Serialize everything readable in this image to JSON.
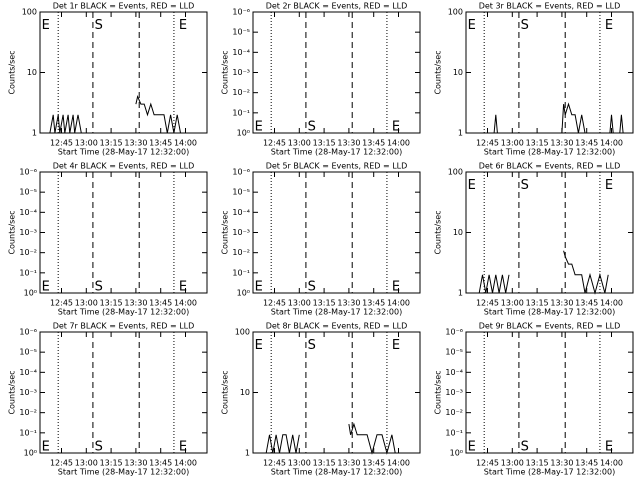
{
  "chart_data": [
    {
      "type": "line",
      "title": "Det 1r BLACK = Events, RED = LLD",
      "xlabel": "Start Time (28-May-17 12:32:00)",
      "ylabel": "Counts/sec",
      "log_y": true,
      "xlim": [
        "12:32",
        "14:13"
      ],
      "xticks": [
        "12:45",
        "13:00",
        "13:15",
        "13:30",
        "13:45",
        "14:00"
      ],
      "ylim": [
        1,
        100
      ],
      "yticks": [
        1,
        10,
        100
      ],
      "vlines": {
        "dotted": [
          "12:43",
          "13:53"
        ],
        "dashed": [
          "13:04",
          "13:32"
        ]
      },
      "annotations": [
        {
          "text": "E",
          "x": "12:33",
          "y": 60
        },
        {
          "text": "S",
          "x": "13:05",
          "y": 60
        },
        {
          "text": "E",
          "x": "13:56",
          "y": 60
        }
      ],
      "series": [
        {
          "color": "#000000",
          "x": [
            "12:38",
            "12:40",
            "12:41",
            "12:43",
            "12:44",
            "12:46",
            "12:47",
            "12:49",
            "12:50",
            "12:52",
            "12:53",
            "12:55",
            "12:57",
            "13:10",
            "13:30",
            "13:31",
            "13:33",
            "13:35",
            "13:37",
            "13:39",
            "13:41",
            "13:43",
            "13:45",
            "13:47",
            "13:49",
            "13:51",
            "13:53",
            "13:55",
            "13:57"
          ],
          "values": [
            1,
            2,
            1,
            2,
            1,
            2,
            1,
            2,
            1,
            2,
            1,
            2,
            1,
            null,
            3,
            4,
            3,
            3,
            2,
            3,
            2,
            2,
            2,
            2,
            1,
            2,
            1,
            2,
            1
          ]
        }
      ]
    },
    {
      "type": "line",
      "title": "Det 2r BLACK = Events, RED = LLD",
      "xlabel": "Start Time (28-May-17 12:32:00)",
      "ylabel": "Counts/sec",
      "log_y": true,
      "xlim": [
        "12:32",
        "14:13"
      ],
      "xticks": [
        "12:45",
        "13:00",
        "13:15",
        "13:30",
        "13:45",
        "14:00"
      ],
      "ylim": [
        1,
        1e-06
      ],
      "yticks": [
        {
          "value": 1,
          "label": "10⁰"
        },
        {
          "value": 0.1,
          "label": "10⁻¹"
        },
        {
          "value": 0.01,
          "label": "10⁻²"
        },
        {
          "value": 0.001,
          "label": "10⁻³"
        },
        {
          "value": 0.0001,
          "label": "10⁻⁴"
        },
        {
          "value": 1e-05,
          "label": "10⁻⁵"
        },
        {
          "value": 1e-06,
          "label": "10⁻⁶"
        }
      ],
      "vlines": {
        "dotted": [
          "12:43",
          "13:53"
        ],
        "dashed": [
          "13:04",
          "13:32"
        ]
      },
      "annotations": [
        {
          "text": "E",
          "x": "12:33",
          "y": 0.5
        },
        {
          "text": "S",
          "x": "13:05",
          "y": 0.5
        },
        {
          "text": "E",
          "x": "13:56",
          "y": 0.5
        }
      ],
      "series": []
    },
    {
      "type": "line",
      "title": "Det 3r BLACK = Events, RED = LLD",
      "xlabel": "Start Time (28-May-17 12:32:00)",
      "ylabel": "Counts/sec",
      "log_y": true,
      "xlim": [
        "12:32",
        "14:13"
      ],
      "xticks": [
        "12:45",
        "13:00",
        "13:15",
        "13:30",
        "13:45",
        "14:00"
      ],
      "ylim": [
        1,
        100
      ],
      "yticks": [
        1,
        10,
        100
      ],
      "vlines": {
        "dotted": [
          "12:43",
          "13:53"
        ],
        "dashed": [
          "13:04",
          "13:32"
        ]
      },
      "annotations": [
        {
          "text": "E",
          "x": "12:33",
          "y": 60
        },
        {
          "text": "S",
          "x": "13:05",
          "y": 60
        },
        {
          "text": "E",
          "x": "13:56",
          "y": 60
        }
      ],
      "series": [
        {
          "color": "#000000",
          "x": [
            "12:49",
            "12:50",
            "12:51",
            "13:20",
            "13:30",
            "13:31",
            "13:32",
            "13:34",
            "13:36",
            "13:38",
            "13:40",
            "13:42",
            "13:44",
            "13:46",
            "13:50",
            "13:59",
            "14:00",
            "14:01",
            "14:05",
            "14:06",
            "14:07"
          ],
          "values": [
            1,
            2,
            1,
            null,
            1,
            3,
            2,
            3,
            2,
            2,
            1,
            2,
            1,
            1,
            null,
            1,
            2,
            1,
            1,
            2,
            1
          ]
        }
      ]
    },
    {
      "type": "line",
      "title": "Det 4r BLACK = Events, RED = LLD",
      "xlabel": "Start Time (28-May-17 12:32:00)",
      "ylabel": "Counts/sec",
      "log_y": true,
      "xlim": [
        "12:32",
        "14:13"
      ],
      "xticks": [
        "12:45",
        "13:00",
        "13:15",
        "13:30",
        "13:45",
        "14:00"
      ],
      "ylim": [
        1,
        1e-06
      ],
      "yticks": [
        {
          "value": 1,
          "label": "10⁰"
        },
        {
          "value": 0.1,
          "label": "10⁻¹"
        },
        {
          "value": 0.01,
          "label": "10⁻²"
        },
        {
          "value": 0.001,
          "label": "10⁻³"
        },
        {
          "value": 0.0001,
          "label": "10⁻⁴"
        },
        {
          "value": 1e-05,
          "label": "10⁻⁵"
        },
        {
          "value": 1e-06,
          "label": "10⁻⁶"
        }
      ],
      "vlines": {
        "dotted": [
          "12:43",
          "13:53"
        ],
        "dashed": [
          "13:04",
          "13:32"
        ]
      },
      "annotations": [
        {
          "text": "E",
          "x": "12:33",
          "y": 0.5
        },
        {
          "text": "S",
          "x": "13:05",
          "y": 0.5
        },
        {
          "text": "E",
          "x": "13:56",
          "y": 0.5
        }
      ],
      "series": []
    },
    {
      "type": "line",
      "title": "Det 5r BLACK = Events, RED = LLD",
      "xlabel": "Start Time (28-May-17 12:32:00)",
      "ylabel": "Counts/sec",
      "log_y": true,
      "xlim": [
        "12:32",
        "14:13"
      ],
      "xticks": [
        "12:45",
        "13:00",
        "13:15",
        "13:30",
        "13:45",
        "14:00"
      ],
      "ylim": [
        1,
        1e-06
      ],
      "yticks": [
        {
          "value": 1,
          "label": "10⁰"
        },
        {
          "value": 0.1,
          "label": "10⁻¹"
        },
        {
          "value": 0.01,
          "label": "10⁻²"
        },
        {
          "value": 0.001,
          "label": "10⁻³"
        },
        {
          "value": 0.0001,
          "label": "10⁻⁴"
        },
        {
          "value": 1e-05,
          "label": "10⁻⁵"
        },
        {
          "value": 1e-06,
          "label": "10⁻⁶"
        }
      ],
      "vlines": {
        "dotted": [
          "12:43",
          "13:53"
        ],
        "dashed": [
          "13:04",
          "13:32"
        ]
      },
      "annotations": [
        {
          "text": "E",
          "x": "12:33",
          "y": 0.5
        },
        {
          "text": "S",
          "x": "13:05",
          "y": 0.5
        },
        {
          "text": "E",
          "x": "13:56",
          "y": 0.5
        }
      ],
      "series": []
    },
    {
      "type": "line",
      "title": "Det 6r BLACK = Events, RED = LLD",
      "xlabel": "Start Time (28-May-17 12:32:00)",
      "ylabel": "Counts/sec",
      "log_y": true,
      "xlim": [
        "12:32",
        "14:13"
      ],
      "xticks": [
        "12:45",
        "13:00",
        "13:15",
        "13:30",
        "13:45",
        "14:00"
      ],
      "ylim": [
        1,
        100
      ],
      "yticks": [
        1,
        10,
        100
      ],
      "vlines": {
        "dotted": [
          "12:43",
          "13:53"
        ],
        "dashed": [
          "13:04",
          "13:32"
        ]
      },
      "annotations": [
        {
          "text": "E",
          "x": "12:33",
          "y": 60
        },
        {
          "text": "S",
          "x": "13:05",
          "y": 60
        },
        {
          "text": "E",
          "x": "13:56",
          "y": 60
        }
      ],
      "series": [
        {
          "color": "#000000",
          "x": [
            "12:40",
            "12:42",
            "12:44",
            "12:46",
            "12:48",
            "12:50",
            "12:52",
            "12:54",
            "12:56",
            "12:58",
            "13:10",
            "13:31",
            "13:32",
            "13:34",
            "13:36",
            "13:38",
            "13:40",
            "13:42",
            "13:44",
            "13:47",
            "13:50",
            "13:53",
            "13:56",
            "13:58"
          ],
          "values": [
            1,
            2,
            1,
            2,
            1,
            2,
            1,
            2,
            1,
            2,
            null,
            5,
            4,
            3,
            3,
            2,
            2,
            2,
            1,
            2,
            1,
            2,
            1,
            2
          ]
        }
      ]
    },
    {
      "type": "line",
      "title": "Det 7r BLACK = Events, RED = LLD",
      "xlabel": "Start Time (28-May-17 12:32:00)",
      "ylabel": "Counts/sec",
      "log_y": true,
      "xlim": [
        "12:32",
        "14:13"
      ],
      "xticks": [
        "12:45",
        "13:00",
        "13:15",
        "13:30",
        "13:45",
        "14:00"
      ],
      "ylim": [
        1,
        1e-06
      ],
      "yticks": [
        {
          "value": 1,
          "label": "10⁰"
        },
        {
          "value": 0.1,
          "label": "10⁻¹"
        },
        {
          "value": 0.01,
          "label": "10⁻²"
        },
        {
          "value": 0.001,
          "label": "10⁻³"
        },
        {
          "value": 0.0001,
          "label": "10⁻⁴"
        },
        {
          "value": 1e-05,
          "label": "10⁻⁵"
        },
        {
          "value": 1e-06,
          "label": "10⁻⁶"
        }
      ],
      "vlines": {
        "dotted": [
          "12:43",
          "13:53"
        ],
        "dashed": [
          "13:04",
          "13:32"
        ]
      },
      "annotations": [
        {
          "text": "E",
          "x": "12:33",
          "y": 0.5
        },
        {
          "text": "S",
          "x": "13:05",
          "y": 0.5
        },
        {
          "text": "E",
          "x": "13:56",
          "y": 0.5
        }
      ],
      "series": []
    },
    {
      "type": "line",
      "title": "Det 8r BLACK = Events, RED = LLD",
      "xlabel": "Start Time (28-May-17 12:32:00)",
      "ylabel": "Counts/sec",
      "log_y": true,
      "xlim": [
        "12:32",
        "14:13"
      ],
      "xticks": [
        "12:45",
        "13:00",
        "13:15",
        "13:30",
        "13:45",
        "14:00"
      ],
      "ylim": [
        1,
        100
      ],
      "yticks": [
        1,
        10,
        100
      ],
      "vlines": {
        "dotted": [
          "12:43",
          "13:53"
        ],
        "dashed": [
          "13:04",
          "13:32"
        ]
      },
      "annotations": [
        {
          "text": "E",
          "x": "12:33",
          "y": 60
        },
        {
          "text": "S",
          "x": "13:05",
          "y": 60
        },
        {
          "text": "E",
          "x": "13:56",
          "y": 60
        }
      ],
      "series": [
        {
          "color": "#000000",
          "x": [
            "12:40",
            "12:42",
            "12:44",
            "12:46",
            "12:48",
            "12:50",
            "12:52",
            "12:54",
            "12:56",
            "12:58",
            "13:00",
            "13:10",
            "13:30",
            "13:31",
            "13:33",
            "13:35",
            "13:38",
            "13:41",
            "13:44",
            "13:47",
            "13:50",
            "13:53",
            "13:56",
            "13:58"
          ],
          "values": [
            1,
            2,
            1,
            2,
            1,
            2,
            2,
            1,
            2,
            1,
            2,
            null,
            3,
            2,
            3,
            2,
            2,
            2,
            1,
            2,
            2,
            1,
            2,
            1
          ]
        }
      ]
    },
    {
      "type": "line",
      "title": "Det 9r BLACK = Events, RED = LLD",
      "xlabel": "Start Time (28-May-17 12:32:00)",
      "ylabel": "Counts/sec",
      "log_y": true,
      "xlim": [
        "12:32",
        "14:13"
      ],
      "xticks": [
        "12:45",
        "13:00",
        "13:15",
        "13:30",
        "13:45",
        "14:00"
      ],
      "ylim": [
        1,
        1e-06
      ],
      "yticks": [
        {
          "value": 1,
          "label": "10⁰"
        },
        {
          "value": 0.1,
          "label": "10⁻¹"
        },
        {
          "value": 0.01,
          "label": "10⁻²"
        },
        {
          "value": 0.001,
          "label": "10⁻³"
        },
        {
          "value": 0.0001,
          "label": "10⁻⁴"
        },
        {
          "value": 1e-05,
          "label": "10⁻⁵"
        },
        {
          "value": 1e-06,
          "label": "10⁻⁶"
        }
      ],
      "vlines": {
        "dotted": [
          "12:43",
          "13:53"
        ],
        "dashed": [
          "13:04",
          "13:32"
        ]
      },
      "annotations": [
        {
          "text": "E",
          "x": "12:33",
          "y": 0.5
        },
        {
          "text": "S",
          "x": "13:05",
          "y": 0.5
        },
        {
          "text": "E",
          "x": "13:56",
          "y": 0.5
        }
      ],
      "series": []
    }
  ]
}
